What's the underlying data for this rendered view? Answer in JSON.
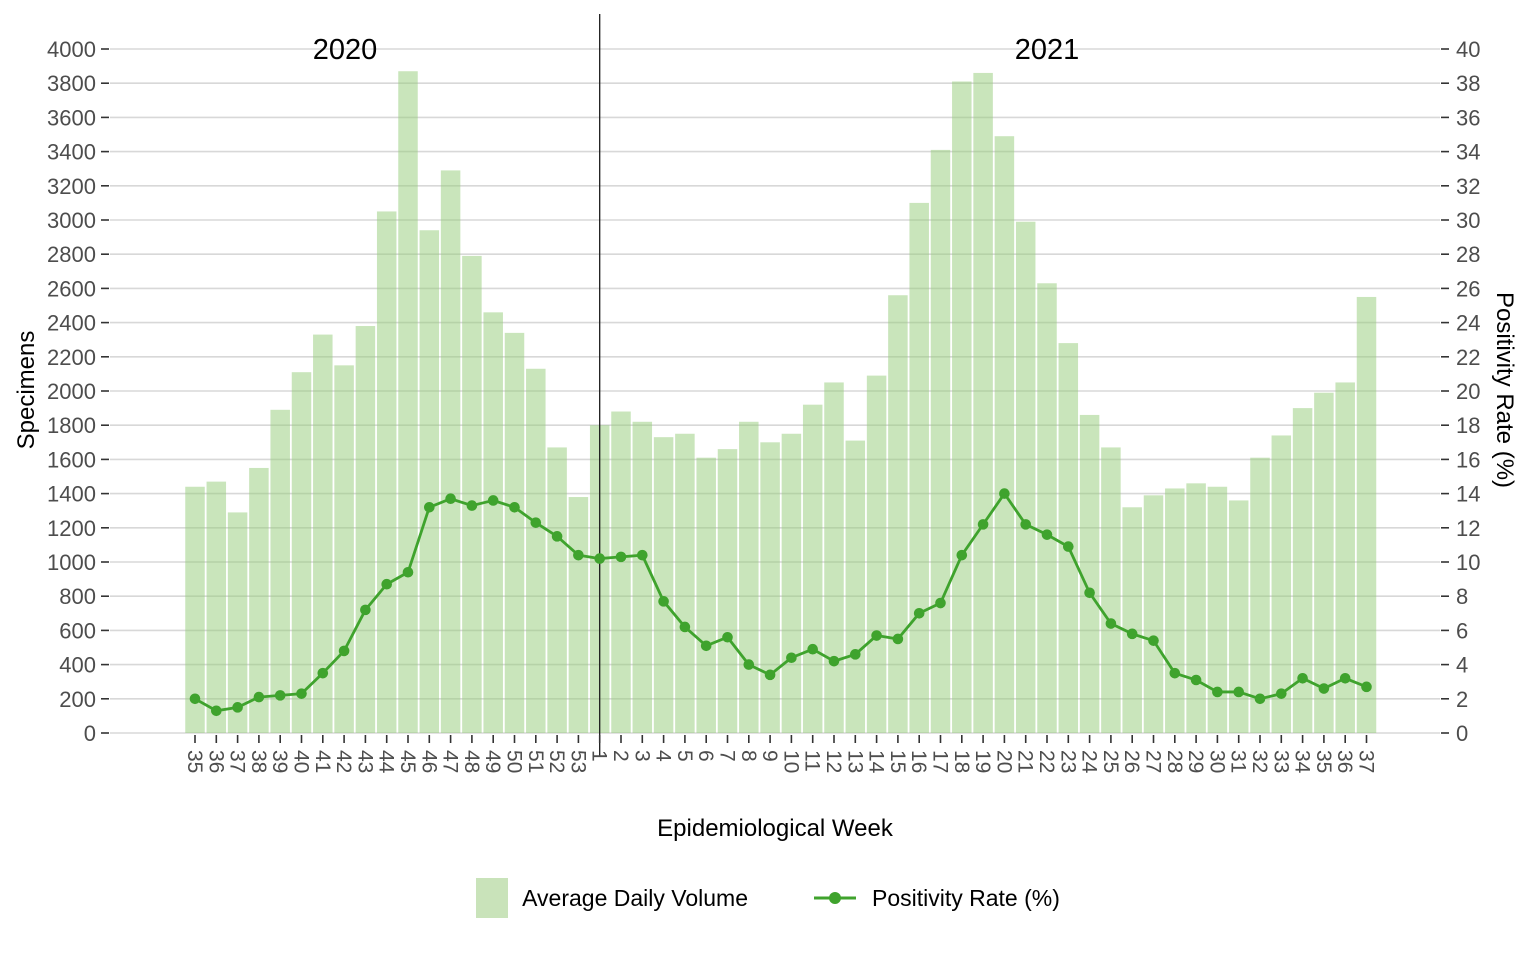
{
  "chart_data": {
    "type": "bar+line",
    "x_axis": {
      "label": "Epidemiological Week",
      "categories": [
        "35",
        "36",
        "37",
        "38",
        "39",
        "40",
        "41",
        "42",
        "43",
        "44",
        "45",
        "46",
        "47",
        "48",
        "49",
        "50",
        "51",
        "52",
        "53",
        "1",
        "2",
        "3",
        "4",
        "5",
        "6",
        "7",
        "8",
        "9",
        "10",
        "11",
        "12",
        "13",
        "14",
        "15",
        "16",
        "17",
        "18",
        "19",
        "20",
        "21",
        "22",
        "23",
        "24",
        "25",
        "26",
        "27",
        "28",
        "29",
        "30",
        "31",
        "32",
        "33",
        "34",
        "35",
        "36",
        "37"
      ]
    },
    "y_left": {
      "label": "Specimens",
      "min": 0,
      "max": 4000,
      "tick_step": 200
    },
    "y_right": {
      "label": "Positivity Rate (%)",
      "min": 0,
      "max": 40,
      "tick_step": 2
    },
    "series": [
      {
        "name": "Average Daily Volume",
        "type": "bar",
        "axis": "left",
        "values": [
          1440,
          1470,
          1290,
          1550,
          1890,
          2110,
          2330,
          2150,
          2380,
          3050,
          3870,
          2940,
          3290,
          2790,
          2460,
          2340,
          2130,
          1670,
          1380,
          1800,
          1880,
          1820,
          1730,
          1750,
          1610,
          1660,
          1820,
          1700,
          1750,
          1920,
          2050,
          1710,
          2090,
          2560,
          3100,
          3410,
          3810,
          3860,
          3490,
          2990,
          2630,
          2280,
          1860,
          1670,
          1320,
          1390,
          1430,
          1460,
          1440,
          1360,
          1610,
          1740,
          1900,
          1990,
          2050,
          2550
        ]
      },
      {
        "name": "Positivity Rate (%)",
        "type": "line",
        "axis": "right",
        "values": [
          2.0,
          1.3,
          1.5,
          2.1,
          2.2,
          2.3,
          3.5,
          4.8,
          7.2,
          8.7,
          9.4,
          13.2,
          13.7,
          13.3,
          13.6,
          13.2,
          12.3,
          11.5,
          10.4,
          10.2,
          10.3,
          10.4,
          7.7,
          6.2,
          5.1,
          5.6,
          4.0,
          3.4,
          4.4,
          4.9,
          4.2,
          4.6,
          5.7,
          5.5,
          7.0,
          7.6,
          10.4,
          12.2,
          14.0,
          12.2,
          11.6,
          10.9,
          8.2,
          6.4,
          5.8,
          5.4,
          3.5,
          3.1,
          2.4,
          2.4,
          2.0,
          2.3,
          3.2,
          2.6,
          3.2,
          2.7
        ]
      }
    ],
    "annotations": {
      "year_labels": [
        {
          "text": "2020",
          "category_index": 7
        },
        {
          "text": "2021",
          "category_index": 40
        }
      ],
      "divider_at_index": 19
    },
    "grid": "horizontal major only",
    "legend_position": "bottom"
  },
  "colors": {
    "bar_fill": "#c9e3ba",
    "bar_fill_base": "#93cc77",
    "line": "#3fa32d",
    "grid": "#d8d8d8",
    "tick_mark": "#333333",
    "tick_text": "#4d4d4d",
    "text": "#000000",
    "divider": "#1a1a1a",
    "background": "#ffffff"
  }
}
